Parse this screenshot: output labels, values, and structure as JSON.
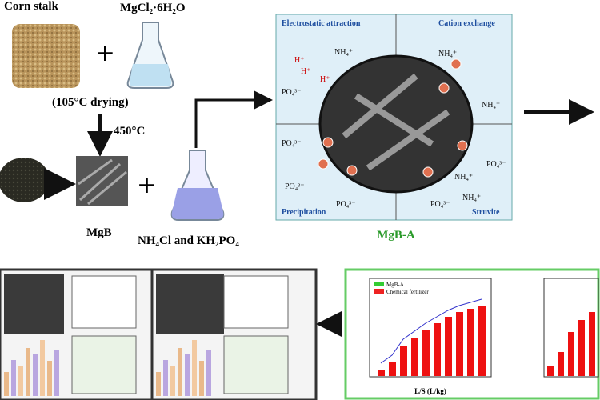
{
  "top": {
    "corn_stalk": "Corn stalk",
    "reagent": "MgCl₂·6H₂O",
    "drying": "(105°C drying)",
    "pyrolysis": "450°C",
    "biochar": "MgB",
    "solution": "NH₄Cl and KH₂PO₄"
  },
  "mechanism": {
    "quadrants": [
      "Electrostatic attraction",
      "Cation exchange",
      "Precipitation",
      "Struvite"
    ],
    "ions": [
      "H⁺",
      "H⁺",
      "H⁺",
      "NH₄⁺",
      "PO₄³⁻",
      "NH₄⁺",
      "NH₄⁺",
      "PO₄³⁻",
      "PO₄³⁻",
      "PO₄³⁻",
      "NH₄⁺",
      "PO₄³⁻",
      "PO₄³⁻",
      "NH₄⁺"
    ],
    "product": "MgB-A"
  },
  "results": {
    "legend": [
      "MgB-A",
      "Chemical fertilizer"
    ],
    "x_label": "L/S (L/kg)"
  }
}
